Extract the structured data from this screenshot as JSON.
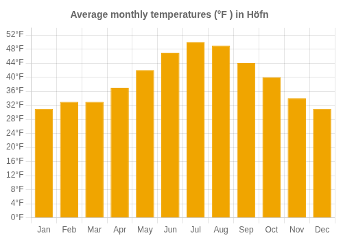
{
  "chart_data": {
    "type": "bar",
    "title": "Average monthly temperatures (°F ) in Höfn",
    "categories": [
      "Jan",
      "Feb",
      "Mar",
      "Apr",
      "May",
      "Jun",
      "Jul",
      "Aug",
      "Sep",
      "Oct",
      "Nov",
      "Dec"
    ],
    "values": [
      31,
      33,
      33,
      37,
      42,
      47,
      50,
      49,
      44,
      40,
      34,
      31
    ],
    "color": "#F0A500",
    "ylim": [
      0,
      54
    ],
    "yticks": [
      {
        "value": 0,
        "label": "0°F"
      },
      {
        "value": 4,
        "label": "4°F"
      },
      {
        "value": 8,
        "label": "8°F"
      },
      {
        "value": 12,
        "label": "12°F"
      },
      {
        "value": 16,
        "label": "16°F"
      },
      {
        "value": 20,
        "label": "20°F"
      },
      {
        "value": 24,
        "label": "24°F"
      },
      {
        "value": 28,
        "label": "28°F"
      },
      {
        "value": 32,
        "label": "32°F"
      },
      {
        "value": 36,
        "label": "36°F"
      },
      {
        "value": 40,
        "label": "40°F"
      },
      {
        "value": 44,
        "label": "44°F"
      },
      {
        "value": 48,
        "label": "48°F"
      },
      {
        "value": 52,
        "label": "52°F"
      }
    ],
    "grid": true
  }
}
